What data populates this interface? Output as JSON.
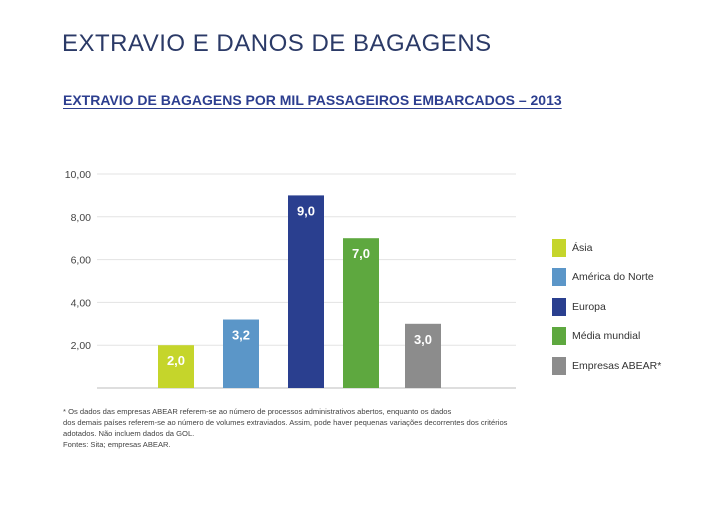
{
  "page_title": "EXTRAVIO E DANOS DE BAGAGENS",
  "chart_title": "EXTRAVIO DE BAGAGENS POR MIL PASSAGEIROS EMBARCADOS – 2013",
  "chart_data": {
    "type": "bar",
    "title": "EXTRAVIO DE BAGAGENS POR MIL PASSAGEIROS EMBARCADOS – 2013",
    "categories": [
      "Ásia",
      "América do Norte",
      "Europa",
      "Média mundial",
      "Empresas ABEAR*"
    ],
    "values": [
      2.0,
      3.2,
      9.0,
      7.0,
      3.0
    ],
    "value_labels": [
      "2,0",
      "3,2",
      "9,0",
      "7,0",
      "3,0"
    ],
    "colors": [
      "#c5d52b",
      "#5b96c8",
      "#2a3f8f",
      "#5ea83f",
      "#8c8c8c"
    ],
    "ylim": [
      0,
      10
    ],
    "yticks": [
      2,
      4,
      6,
      8,
      10
    ],
    "ytick_labels": [
      "2,00",
      "4,00",
      "6,00",
      "8,00",
      "10,00"
    ],
    "grid": true,
    "legend_position": "right"
  },
  "footnote": [
    "* Os dados das empresas ABEAR referem-se ao número de processos administrativos abertos, enquanto os dados",
    "dos demais países referem-se ao número de volumes extraviados. Assim, pode haver pequenas variações decorrentes dos critérios",
    "adotados. Não incluem dados da GOL.",
    "Fontes: Sita; empresas ABEAR."
  ]
}
